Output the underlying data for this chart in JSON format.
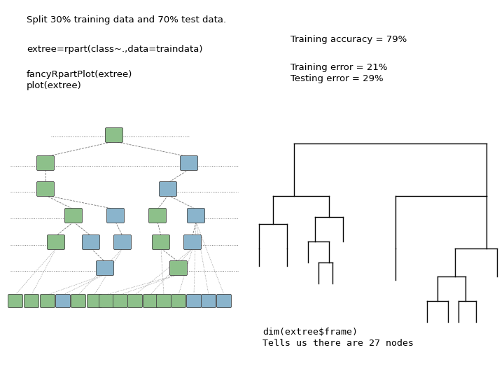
{
  "title_text": "Split 30% training data and 70% test data.",
  "code_line1": "extree=rpart(class~.,data=traindata)",
  "code_line2": "fancyRpartPlot(extree)",
  "code_line3": "plot(extree)",
  "right_text1": "Training accuracy = 79%",
  "right_text2": "Training error = 21%",
  "right_text3": "Testing error = 29%",
  "bottom_text1": "dim(extree$frame)",
  "bottom_text2": "Tells us there are 27 nodes",
  "bg_color": "#ffffff",
  "text_color": "#000000",
  "node_green": "#8dc08a",
  "node_blue": "#8ab4cc",
  "line_color": "#777777",
  "dendro_color": "#000000"
}
